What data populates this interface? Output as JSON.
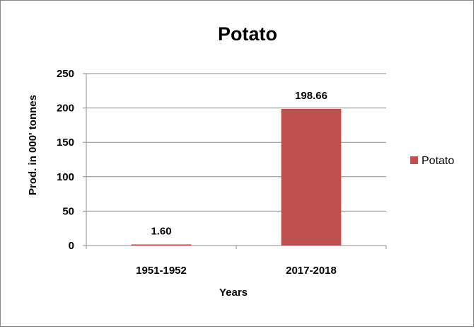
{
  "chart_data": {
    "type": "bar",
    "title": "Potato",
    "xlabel": "Years",
    "ylabel": "Prod. in 000' tonnes",
    "categories": [
      "1951-1952",
      "2017-2018"
    ],
    "series": [
      {
        "name": "Potato",
        "values": [
          1.6,
          198.66
        ],
        "labels": [
          "1.60",
          "198.66"
        ],
        "color": "#c0504d"
      }
    ],
    "ylim": [
      0,
      250
    ],
    "yticks": [
      0,
      50,
      100,
      150,
      200,
      250
    ],
    "grid": true,
    "legend_position": "right"
  }
}
